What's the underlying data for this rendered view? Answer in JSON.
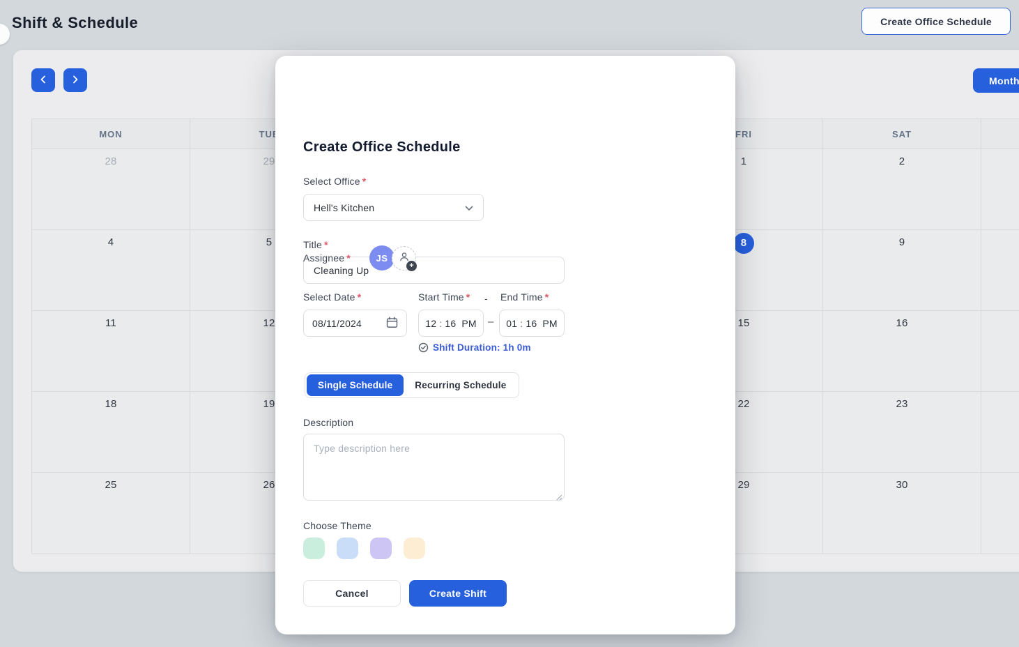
{
  "page": {
    "title": "Shift & Schedule",
    "create_button_label": "Create Office Schedule"
  },
  "calendar": {
    "view_button_label": "Month",
    "day_headers": [
      "MON",
      "TUE",
      "",
      "",
      "FRI",
      "SAT",
      ""
    ],
    "weeks": [
      [
        {
          "label": "28",
          "muted": true
        },
        {
          "label": "29",
          "muted": true
        },
        {
          "label": ""
        },
        {
          "label": ""
        },
        {
          "label": "1"
        },
        {
          "label": "2"
        },
        {
          "label": ""
        }
      ],
      [
        {
          "label": "4"
        },
        {
          "label": "5"
        },
        {
          "label": ""
        },
        {
          "label": ""
        },
        {
          "label": "8",
          "selected": true
        },
        {
          "label": "9"
        },
        {
          "label": ""
        }
      ],
      [
        {
          "label": "11"
        },
        {
          "label": "12"
        },
        {
          "label": ""
        },
        {
          "label": ""
        },
        {
          "label": "15"
        },
        {
          "label": "16"
        },
        {
          "label": ""
        }
      ],
      [
        {
          "label": "18"
        },
        {
          "label": "19"
        },
        {
          "label": ""
        },
        {
          "label": ""
        },
        {
          "label": "22"
        },
        {
          "label": "23"
        },
        {
          "label": ""
        }
      ],
      [
        {
          "label": "25"
        },
        {
          "label": "26"
        },
        {
          "label": ""
        },
        {
          "label": ""
        },
        {
          "label": "29"
        },
        {
          "label": "30"
        },
        {
          "label": ""
        }
      ]
    ]
  },
  "modal": {
    "title": "Create Office Schedule",
    "required_marker": "*",
    "office": {
      "label": "Select Office",
      "value": "Hell's Kitchen"
    },
    "shift_title": {
      "label": "Title",
      "value": "Cleaning Up"
    },
    "assignee": {
      "label": "Assignee",
      "avatar_initials": "JS",
      "add_badge": "+"
    },
    "date": {
      "label": "Select Date",
      "value": "08/11/2024"
    },
    "start_time": {
      "label": "Start Time",
      "hour": "12",
      "minute": "16",
      "meridiem": "PM"
    },
    "end_time": {
      "label": "End Time",
      "hour": "01",
      "minute": "16",
      "meridiem": "PM"
    },
    "time_colon": ":",
    "labels_separator": "-",
    "range_separator": "–",
    "duration_note": "Shift Duration: 1h 0m",
    "schedule_tabs": {
      "single": "Single Schedule",
      "recurring": "Recurring Schedule"
    },
    "description": {
      "label": "Description",
      "placeholder": "Type description here"
    },
    "theme": {
      "label": "Choose Theme",
      "swatches": [
        "#c9eedd",
        "#caddf8",
        "#cdc5f4",
        "#fdedd3"
      ]
    },
    "actions": {
      "cancel": "Cancel",
      "submit": "Create Shift"
    }
  },
  "colors": {
    "accent": "#2760dd",
    "duration_text": "#3a5bd7",
    "required": "#e25563"
  }
}
